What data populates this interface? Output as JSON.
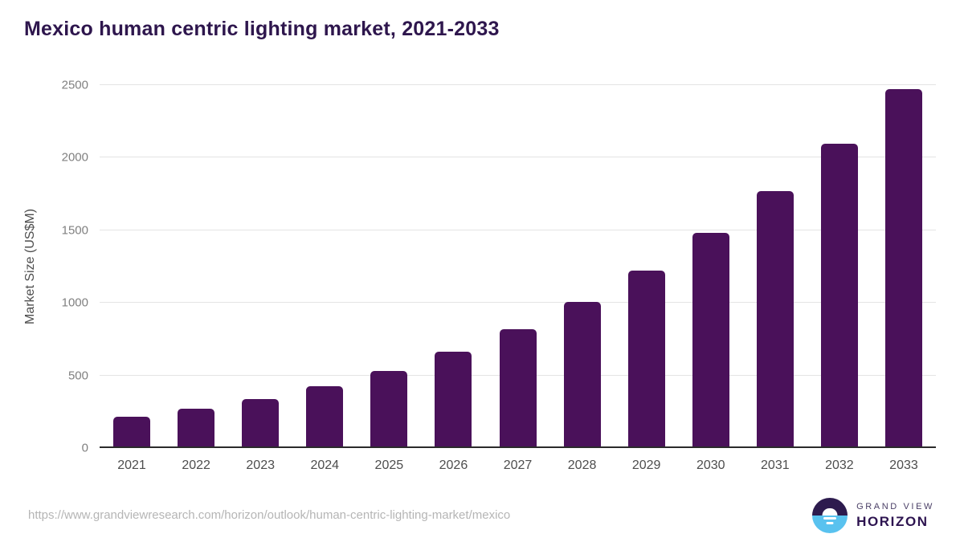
{
  "chart_data": {
    "type": "bar",
    "title": "Mexico human centric lighting market, 2021-2033",
    "xlabel": "",
    "ylabel": "Market Size (US$M)",
    "categories": [
      "2021",
      "2022",
      "2023",
      "2024",
      "2025",
      "2026",
      "2027",
      "2028",
      "2029",
      "2030",
      "2031",
      "2032",
      "2033"
    ],
    "values": [
      218,
      271,
      340,
      426,
      532,
      663,
      818,
      1005,
      1222,
      1481,
      1772,
      2096,
      2473
    ],
    "ylim": [
      0,
      2500
    ],
    "yticks": [
      0,
      500,
      1000,
      1500,
      2000,
      2500
    ],
    "grid": "horizontal",
    "legend": "none",
    "bar_color": "#4a115a"
  },
  "colors": {
    "title_text": "#2e164d",
    "bar": "#4a115a",
    "gridline": "#e4e4e4",
    "axis_line": "#2b2b2b",
    "y_tick_text": "#808080",
    "x_tick_text": "#4d4d4d",
    "url_text": "#b5b5b5",
    "logo_dark_purple": "#2d1b4e",
    "logo_light_blue": "#59c2ef"
  },
  "footer": {
    "source_url": "https://www.grandviewresearch.com/horizon/outlook/human-centric-lighting-market/mexico",
    "logo": {
      "line1": "GRAND VIEW",
      "line2": "HORIZON"
    }
  }
}
